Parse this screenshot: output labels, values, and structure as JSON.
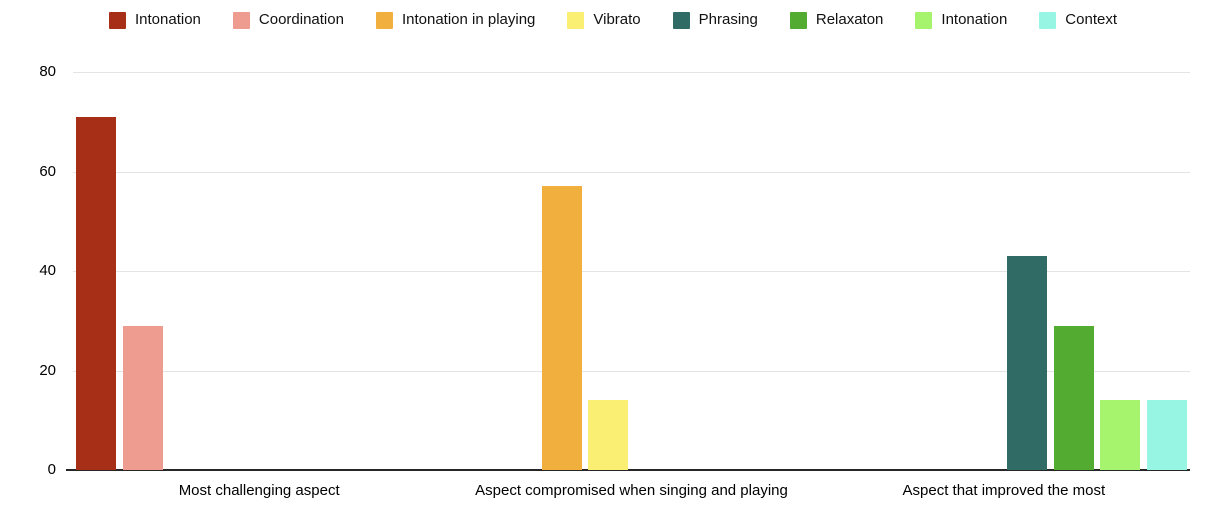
{
  "background": "#FFFFFF",
  "axis": {
    "gridline_color": "#E4E4E4",
    "baseline_color": "#262626",
    "text_color": "#000000"
  },
  "chart_data": {
    "type": "bar",
    "title": "",
    "xlabel": "",
    "ylabel": "",
    "categories": [
      "Most challenging aspect",
      "Aspect compromised when singing and playing",
      "Aspect that improved the most"
    ],
    "series": [
      {
        "name": "Intonation",
        "color": "#A72F18",
        "values": [
          71,
          0,
          0
        ]
      },
      {
        "name": "Coordination",
        "color": "#EF9C90",
        "values": [
          29,
          0,
          0
        ]
      },
      {
        "name": "Intonation in playing",
        "color": "#F1AF3E",
        "values": [
          0,
          57,
          0
        ]
      },
      {
        "name": "Vibrato",
        "color": "#FAEF72",
        "values": [
          0,
          14,
          0
        ]
      },
      {
        "name": "Phrasing",
        "color": "#306B66",
        "values": [
          0,
          0,
          43
        ]
      },
      {
        "name": "Relaxaton",
        "color": "#54AB31",
        "values": [
          0,
          0,
          29
        ]
      },
      {
        "name": "Intonation",
        "color": "#A6F46E",
        "values": [
          0,
          0,
          14
        ]
      },
      {
        "name": "Context",
        "color": "#97F6E3",
        "values": [
          0,
          0,
          14
        ]
      }
    ],
    "ylim": [
      0,
      80
    ],
    "yticks": [
      0,
      20,
      40,
      60,
      80
    ],
    "grid": true,
    "legend_position": "top"
  }
}
